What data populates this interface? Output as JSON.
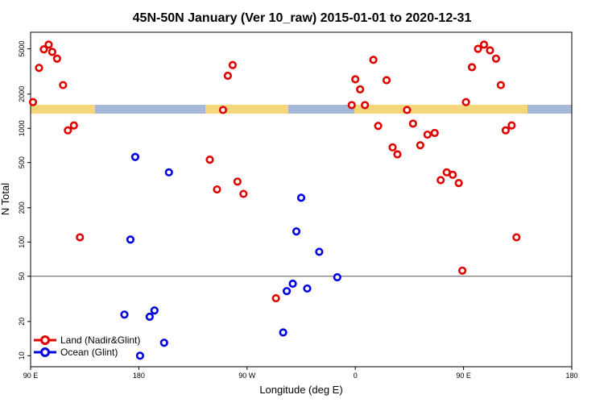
{
  "chart_data": {
    "type": "scatter",
    "title": "45N-50N January (Ver 10_raw)   2015-01-01 to 2020-12-31",
    "xlabel": "Longitude (deg E)",
    "ylabel": "N Total",
    "xlim": [
      90,
      450
    ],
    "ylim": [
      8,
      7000
    ],
    "yscale": "log",
    "x_ticks": [
      {
        "value": 90,
        "label": "90 E"
      },
      {
        "value": 180,
        "label": "180"
      },
      {
        "value": 270,
        "label": "90 W"
      },
      {
        "value": 360,
        "label": "0"
      },
      {
        "value": 450,
        "label": "90 E"
      },
      {
        "value": 540,
        "label": "180"
      }
    ],
    "y_ticks": [
      {
        "value": 10,
        "label": "10"
      },
      {
        "value": 20,
        "label": "20"
      },
      {
        "value": 50,
        "label": "50"
      },
      {
        "value": 100,
        "label": "100"
      },
      {
        "value": 200,
        "label": "200"
      },
      {
        "value": 500,
        "label": "500"
      },
      {
        "value": 1000,
        "label": "1000"
      },
      {
        "value": 2000,
        "label": "2000"
      },
      {
        "value": 5000,
        "label": "5000"
      }
    ],
    "reference_line": 50,
    "map_strip": {
      "colors": {
        "land": "#f5d67a",
        "ocean": "#a6b8d8"
      }
    },
    "legend_position": "bottom-left",
    "series": [
      {
        "name": "Land (Nadir&Glint)",
        "color": "#e00000",
        "points": [
          [
            92,
            1700
          ],
          [
            97,
            3400
          ],
          [
            101,
            4950
          ],
          [
            105,
            5450
          ],
          [
            108,
            4700
          ],
          [
            112,
            4100
          ],
          [
            117,
            2400
          ],
          [
            121,
            960
          ],
          [
            126,
            1060
          ],
          [
            131,
            110
          ],
          [
            239,
            530
          ],
          [
            245,
            290
          ],
          [
            250,
            1450
          ],
          [
            254,
            2900
          ],
          [
            258,
            3600
          ],
          [
            262,
            340
          ],
          [
            267,
            265
          ],
          [
            294,
            32
          ],
          [
            357,
            1600
          ],
          [
            360,
            2700
          ],
          [
            364,
            2200
          ],
          [
            368,
            1600
          ],
          [
            375,
            4000
          ],
          [
            379,
            1050
          ],
          [
            386,
            2650
          ],
          [
            391,
            680
          ],
          [
            395,
            590
          ],
          [
            403,
            1450
          ],
          [
            408,
            1100
          ],
          [
            414,
            710
          ],
          [
            420,
            880
          ],
          [
            426,
            910
          ],
          [
            431,
            350
          ],
          [
            436,
            410
          ],
          [
            441,
            390
          ],
          [
            446,
            330
          ],
          [
            449,
            56
          ],
          [
            452,
            1700
          ],
          [
            457,
            3450
          ],
          [
            462,
            5000
          ],
          [
            467,
            5450
          ],
          [
            472,
            4850
          ],
          [
            477,
            4100
          ],
          [
            481,
            2400
          ],
          [
            485,
            960
          ],
          [
            490,
            1060
          ],
          [
            494,
            110
          ]
        ]
      },
      {
        "name": "Ocean (Glint)",
        "color": "#0000e0",
        "points": [
          [
            168,
            23
          ],
          [
            173,
            105
          ],
          [
            177,
            560
          ],
          [
            181,
            10
          ],
          [
            189,
            22
          ],
          [
            193,
            25
          ],
          [
            201,
            13
          ],
          [
            205,
            410
          ],
          [
            300,
            16
          ],
          [
            303,
            37
          ],
          [
            308,
            43
          ],
          [
            311,
            124
          ],
          [
            315,
            245
          ],
          [
            320,
            39
          ],
          [
            330,
            82
          ],
          [
            345,
            49
          ]
        ]
      }
    ]
  }
}
